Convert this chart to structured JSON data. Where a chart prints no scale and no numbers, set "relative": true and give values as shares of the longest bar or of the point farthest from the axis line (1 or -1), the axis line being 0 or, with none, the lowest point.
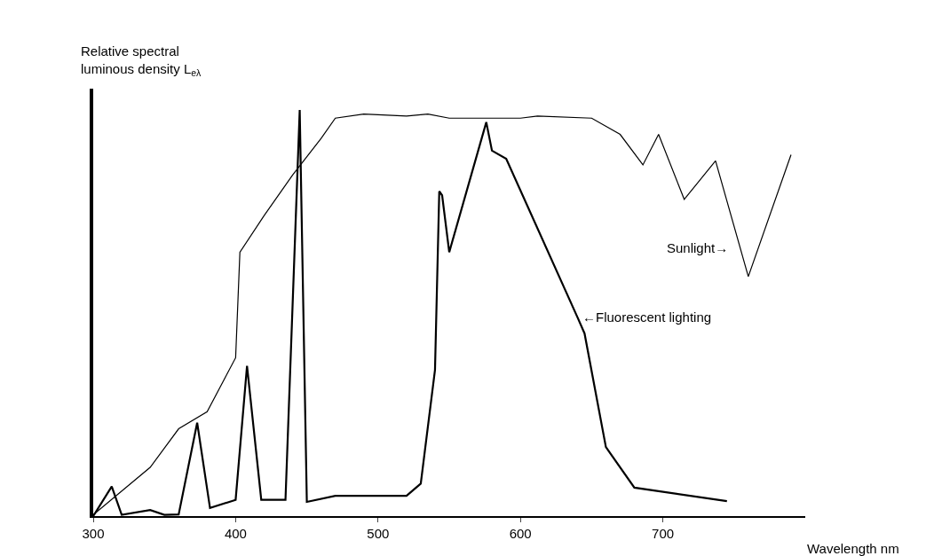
{
  "chart_data": {
    "type": "line",
    "relative": true,
    "xlabel": "Wavelength nm",
    "ylabel": "Relative spectral luminous density L$_{eλ}$",
    "xlim": [
      300,
      800
    ],
    "xticks": [
      300,
      400,
      500,
      600,
      700
    ],
    "legend": false,
    "marker": "none",
    "line_style": "solid",
    "series": [
      {
        "name": "Sunlight→",
        "color": "#000000",
        "x": [
          300,
          340,
          360,
          380,
          400,
          403,
          420,
          440,
          460,
          470,
          490,
          520,
          535,
          550,
          600,
          612,
          650,
          670,
          686,
          697,
          715,
          737,
          760,
          790
        ],
        "values": [
          0.003,
          0.12,
          0.215,
          0.257,
          0.39,
          0.65,
          0.74,
          0.84,
          0.93,
          0.98,
          0.99,
          0.985,
          0.99,
          0.98,
          0.98,
          0.985,
          0.98,
          0.94,
          0.865,
          0.94,
          0.78,
          0.875,
          0.59,
          0.89
        ]
      },
      {
        "name": "←Fluorescent lighting",
        "color": "#000000",
        "x": [
          300,
          313,
          320,
          340,
          350,
          360,
          373,
          382,
          400,
          408,
          418,
          435,
          445,
          450,
          470,
          520,
          530,
          540,
          543,
          545,
          550,
          576,
          580,
          590,
          640,
          645,
          660,
          680,
          745
        ],
        "values": [
          0,
          0.073,
          0.003,
          0.015,
          0.003,
          0.004,
          0.23,
          0.02,
          0.04,
          0.37,
          0.04,
          0.04,
          1.0,
          0.035,
          0.05,
          0.05,
          0.08,
          0.36,
          0.8,
          0.79,
          0.65,
          0.97,
          0.9,
          0.88,
          0.49,
          0.45,
          0.17,
          0.07,
          0.037
        ]
      }
    ]
  }
}
